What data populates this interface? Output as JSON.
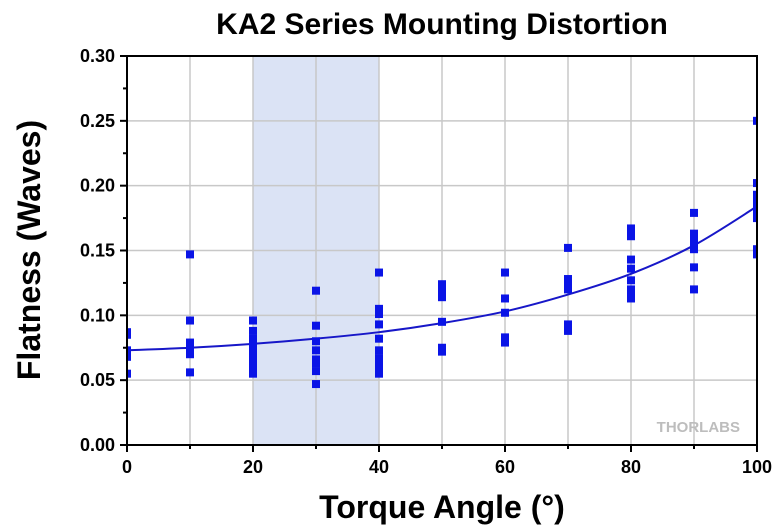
{
  "chart_data": {
    "type": "scatter",
    "title": "KA2 Series Mounting Distortion",
    "xlabel": "Torque Angle (°)",
    "ylabel": "Flatness (Waves)",
    "xlim": [
      0,
      100
    ],
    "ylim": [
      0,
      0.3
    ],
    "x_ticks": [
      "0",
      "20",
      "40",
      "60",
      "80",
      "100"
    ],
    "y_ticks": [
      "0.00",
      "0.05",
      "0.10",
      "0.15",
      "0.20",
      "0.25",
      "0.30"
    ],
    "grid": true,
    "highlight_band": {
      "x_start": 20,
      "x_end": 40,
      "color": "#dbe3f5"
    },
    "marker_color": "#0a14e6",
    "fit_color": "#1717c8",
    "points": [
      {
        "x": 0,
        "y": 0.055
      },
      {
        "x": 0,
        "y": 0.068
      },
      {
        "x": 0,
        "y": 0.073
      },
      {
        "x": 0,
        "y": 0.085
      },
      {
        "x": 0,
        "y": 0.087
      },
      {
        "x": 10,
        "y": 0.056
      },
      {
        "x": 10,
        "y": 0.07
      },
      {
        "x": 10,
        "y": 0.073
      },
      {
        "x": 10,
        "y": 0.076
      },
      {
        "x": 10,
        "y": 0.079
      },
      {
        "x": 10,
        "y": 0.096
      },
      {
        "x": 10,
        "y": 0.147
      },
      {
        "x": 20,
        "y": 0.055
      },
      {
        "x": 20,
        "y": 0.058
      },
      {
        "x": 20,
        "y": 0.061
      },
      {
        "x": 20,
        "y": 0.066
      },
      {
        "x": 20,
        "y": 0.071
      },
      {
        "x": 20,
        "y": 0.076
      },
      {
        "x": 20,
        "y": 0.082
      },
      {
        "x": 20,
        "y": 0.088
      },
      {
        "x": 20,
        "y": 0.096
      },
      {
        "x": 30,
        "y": 0.047
      },
      {
        "x": 30,
        "y": 0.057
      },
      {
        "x": 30,
        "y": 0.063
      },
      {
        "x": 30,
        "y": 0.066
      },
      {
        "x": 30,
        "y": 0.073
      },
      {
        "x": 30,
        "y": 0.08
      },
      {
        "x": 30,
        "y": 0.092
      },
      {
        "x": 30,
        "y": 0.119
      },
      {
        "x": 40,
        "y": 0.055
      },
      {
        "x": 40,
        "y": 0.059
      },
      {
        "x": 40,
        "y": 0.063
      },
      {
        "x": 40,
        "y": 0.067
      },
      {
        "x": 40,
        "y": 0.073
      },
      {
        "x": 40,
        "y": 0.082
      },
      {
        "x": 40,
        "y": 0.093
      },
      {
        "x": 40,
        "y": 0.101
      },
      {
        "x": 40,
        "y": 0.105
      },
      {
        "x": 40,
        "y": 0.133
      },
      {
        "x": 50,
        "y": 0.072
      },
      {
        "x": 50,
        "y": 0.075
      },
      {
        "x": 50,
        "y": 0.095
      },
      {
        "x": 50,
        "y": 0.114
      },
      {
        "x": 50,
        "y": 0.117
      },
      {
        "x": 50,
        "y": 0.12
      },
      {
        "x": 50,
        "y": 0.124
      },
      {
        "x": 60,
        "y": 0.079
      },
      {
        "x": 60,
        "y": 0.083
      },
      {
        "x": 60,
        "y": 0.102
      },
      {
        "x": 60,
        "y": 0.113
      },
      {
        "x": 60,
        "y": 0.133
      },
      {
        "x": 70,
        "y": 0.088
      },
      {
        "x": 70,
        "y": 0.093
      },
      {
        "x": 70,
        "y": 0.12
      },
      {
        "x": 70,
        "y": 0.124
      },
      {
        "x": 70,
        "y": 0.128
      },
      {
        "x": 70,
        "y": 0.152
      },
      {
        "x": 80,
        "y": 0.113
      },
      {
        "x": 80,
        "y": 0.117
      },
      {
        "x": 80,
        "y": 0.12
      },
      {
        "x": 80,
        "y": 0.127
      },
      {
        "x": 80,
        "y": 0.136
      },
      {
        "x": 80,
        "y": 0.143
      },
      {
        "x": 80,
        "y": 0.161
      },
      {
        "x": 80,
        "y": 0.164
      },
      {
        "x": 80,
        "y": 0.167
      },
      {
        "x": 90,
        "y": 0.12
      },
      {
        "x": 90,
        "y": 0.137
      },
      {
        "x": 90,
        "y": 0.151
      },
      {
        "x": 90,
        "y": 0.156
      },
      {
        "x": 90,
        "y": 0.16
      },
      {
        "x": 90,
        "y": 0.163
      },
      {
        "x": 90,
        "y": 0.179
      },
      {
        "x": 100,
        "y": 0.147
      },
      {
        "x": 100,
        "y": 0.151
      },
      {
        "x": 100,
        "y": 0.175
      },
      {
        "x": 100,
        "y": 0.18
      },
      {
        "x": 100,
        "y": 0.184
      },
      {
        "x": 100,
        "y": 0.188
      },
      {
        "x": 100,
        "y": 0.193
      },
      {
        "x": 100,
        "y": 0.202
      },
      {
        "x": 100,
        "y": 0.25
      }
    ],
    "fit_curve": {
      "x": [
        0,
        10,
        20,
        30,
        40,
        50,
        60,
        70,
        80,
        90,
        100
      ],
      "y": [
        0.073,
        0.075,
        0.078,
        0.082,
        0.087,
        0.094,
        0.103,
        0.116,
        0.132,
        0.154,
        0.184
      ]
    }
  },
  "watermark": "THORLABS"
}
